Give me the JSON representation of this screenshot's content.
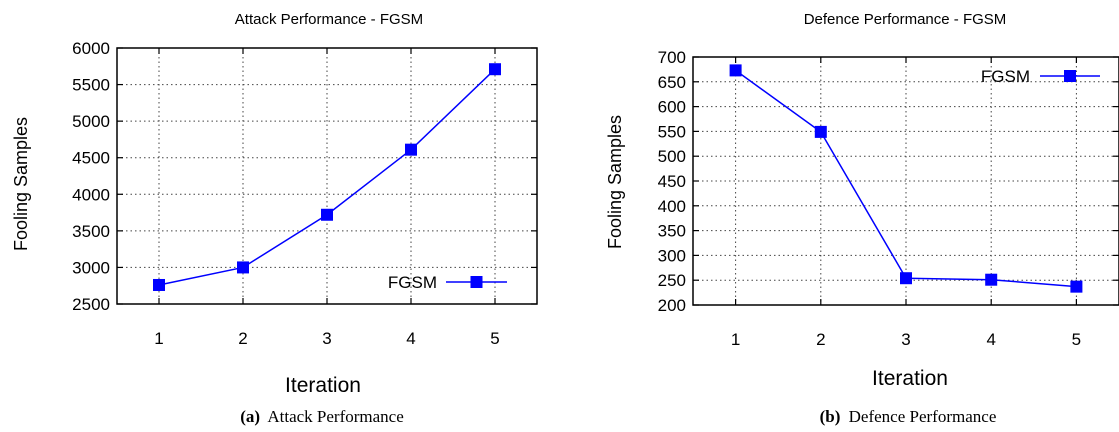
{
  "colors": {
    "series": "#0000ff",
    "axis": "#000000",
    "grid": "#444444"
  },
  "figures": [
    {
      "tag": "(a)",
      "caption": "Attack Performance"
    },
    {
      "tag": "(b)",
      "caption": "Defence Performance"
    }
  ],
  "chart_data": [
    {
      "type": "line",
      "title": "Attack Performance - FGSM",
      "xlabel": "Iteration",
      "ylabel": "Fooling Samples",
      "x": [
        1,
        2,
        3,
        4,
        5
      ],
      "xlim": [
        0.5,
        5.5
      ],
      "ylim": [
        2500,
        6000
      ],
      "yticks": [
        2500,
        3000,
        3500,
        4000,
        4500,
        5000,
        5500,
        6000
      ],
      "grid": true,
      "legend": "bottom-right",
      "series": [
        {
          "name": "FGSM",
          "values": [
            2760,
            3000,
            3720,
            4610,
            5710
          ]
        }
      ]
    },
    {
      "type": "line",
      "title": "Defence Performance - FGSM",
      "xlabel": "Iteration",
      "ylabel": "Fooling Samples",
      "x": [
        1,
        2,
        3,
        4,
        5
      ],
      "xlim": [
        0.5,
        5.5
      ],
      "ylim": [
        200,
        700
      ],
      "yticks": [
        200,
        250,
        300,
        350,
        400,
        450,
        500,
        550,
        600,
        650,
        700
      ],
      "grid": true,
      "legend": "top-right",
      "series": [
        {
          "name": "FGSM",
          "values": [
            673,
            549,
            254,
            251,
            237
          ]
        }
      ]
    }
  ]
}
